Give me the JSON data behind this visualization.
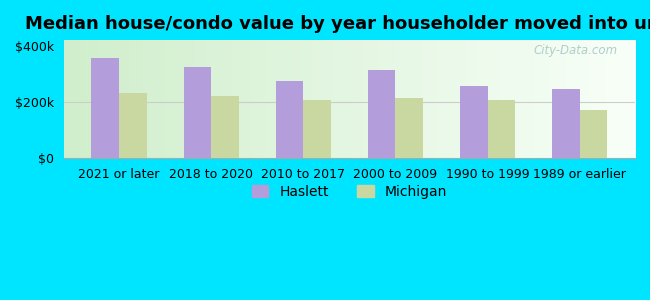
{
  "title": "Median house/condo value by year householder moved into unit",
  "categories": [
    "2021 or later",
    "2018 to 2020",
    "2010 to 2017",
    "2000 to 2009",
    "1990 to 1999",
    "1989 or earlier"
  ],
  "haslett_values": [
    355000,
    325000,
    275000,
    315000,
    255000,
    245000
  ],
  "michigan_values": [
    230000,
    220000,
    205000,
    215000,
    205000,
    172000
  ],
  "haslett_color": "#b39ddb",
  "michigan_color": "#c8d8a0",
  "figure_bg": "#00e5ff",
  "plot_bg_left": "#d0eecc",
  "plot_bg_right": "#f8fff8",
  "ytick_labels": [
    "$0",
    "$200k",
    "$400k"
  ],
  "ytick_values": [
    0,
    200000,
    400000
  ],
  "ylim": [
    0,
    420000
  ],
  "legend_labels": [
    "Haslett",
    "Michigan"
  ],
  "bar_width": 0.3,
  "watermark": "City-Data.com",
  "title_fontsize": 13,
  "tick_fontsize": 9,
  "legend_fontsize": 10
}
